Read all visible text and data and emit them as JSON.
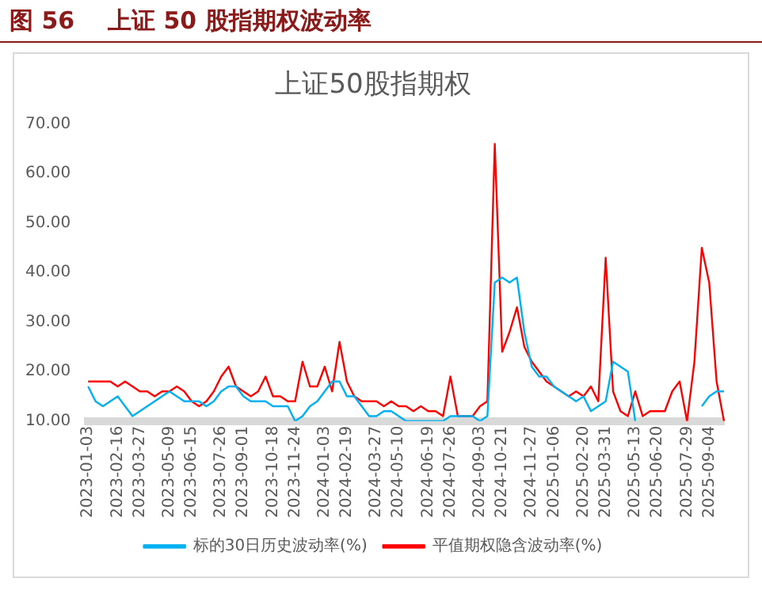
{
  "chart_data": {
    "type": "line",
    "title": "图 56    上证 50 股指期权波动率",
    "subtitle": "上证50股指期权",
    "categories": [
      "2023-01-03",
      null,
      null,
      null,
      "2023-02-16",
      null,
      null,
      "2023-03-27",
      null,
      null,
      null,
      "2023-05-09",
      null,
      null,
      "2023-06-15",
      null,
      null,
      null,
      "2023-07-26",
      null,
      null,
      "2023-09-01",
      null,
      null,
      null,
      "2023-10-18",
      null,
      null,
      "2023-11-24",
      null,
      null,
      null,
      "2024-01-03",
      null,
      null,
      "2024-02-19",
      null,
      null,
      null,
      "2024-03-27",
      null,
      null,
      "2024-05-10",
      null,
      null,
      null,
      "2024-06-19",
      null,
      null,
      "2024-07-26",
      null,
      null,
      null,
      "2024-09-03",
      null,
      null,
      "2024-10-21",
      null,
      null,
      null,
      "2024-11-27",
      null,
      null,
      "2025-01-06",
      null,
      null,
      null,
      "2025-02-20",
      null,
      null,
      "2025-03-31",
      null,
      null,
      null,
      "2025-05-13",
      null,
      null,
      "2025-06-20",
      null,
      null,
      null,
      "2025-07-29",
      null,
      null,
      "2025-09-04",
      null,
      null
    ],
    "series": [
      {
        "name": "标的30日历史波动率(%)",
        "color": "#00b0f0",
        "values": [
          17,
          14,
          13,
          14,
          15,
          13,
          11,
          12,
          13,
          14,
          15,
          16,
          15,
          14,
          14,
          14,
          13,
          14,
          16,
          17,
          17,
          15,
          14,
          14,
          14,
          13,
          13,
          13,
          10,
          11,
          13,
          14,
          16,
          18,
          18,
          15,
          15,
          13,
          11,
          11,
          12,
          12,
          11,
          10,
          10,
          10,
          10,
          10,
          10,
          11,
          11,
          11,
          11,
          10,
          11,
          38,
          39,
          38,
          39,
          28,
          21,
          19,
          19,
          17,
          16,
          15,
          14,
          15,
          12,
          13,
          14,
          22,
          21,
          20,
          10,
          null,
          null,
          null,
          null,
          null,
          null,
          null,
          null,
          13,
          15,
          16,
          16
        ]
      },
      {
        "name": "平值期权隐含波动率(%)",
        "color": "#ff0000",
        "values": [
          18,
          18,
          18,
          18,
          17,
          18,
          17,
          16,
          16,
          15,
          16,
          16,
          17,
          16,
          14,
          13,
          14,
          16,
          19,
          21,
          17,
          16,
          15,
          16,
          19,
          15,
          15,
          14,
          14,
          22,
          17,
          17,
          21,
          16,
          26,
          18,
          15,
          14,
          14,
          14,
          13,
          14,
          13,
          13,
          12,
          13,
          12,
          12,
          11,
          19,
          11,
          11,
          11,
          13,
          14,
          66,
          24,
          28,
          33,
          25,
          22,
          20,
          18,
          17,
          16,
          15,
          16,
          15,
          17,
          14,
          43,
          16,
          12,
          11,
          16,
          11,
          12,
          12,
          12,
          16,
          18,
          10,
          22,
          45,
          38,
          18,
          10
        ]
      }
    ],
    "ylim": [
      10,
      70
    ],
    "yticks": [
      {
        "value": 10,
        "label": "10.00"
      },
      {
        "value": 20,
        "label": "20.00"
      },
      {
        "value": 30,
        "label": "30.00"
      },
      {
        "value": 40,
        "label": "40.00"
      },
      {
        "value": 50,
        "label": "50.00"
      },
      {
        "value": 60,
        "label": "60.00"
      },
      {
        "value": 70,
        "label": "70.00"
      }
    ],
    "legend": "bottom"
  }
}
